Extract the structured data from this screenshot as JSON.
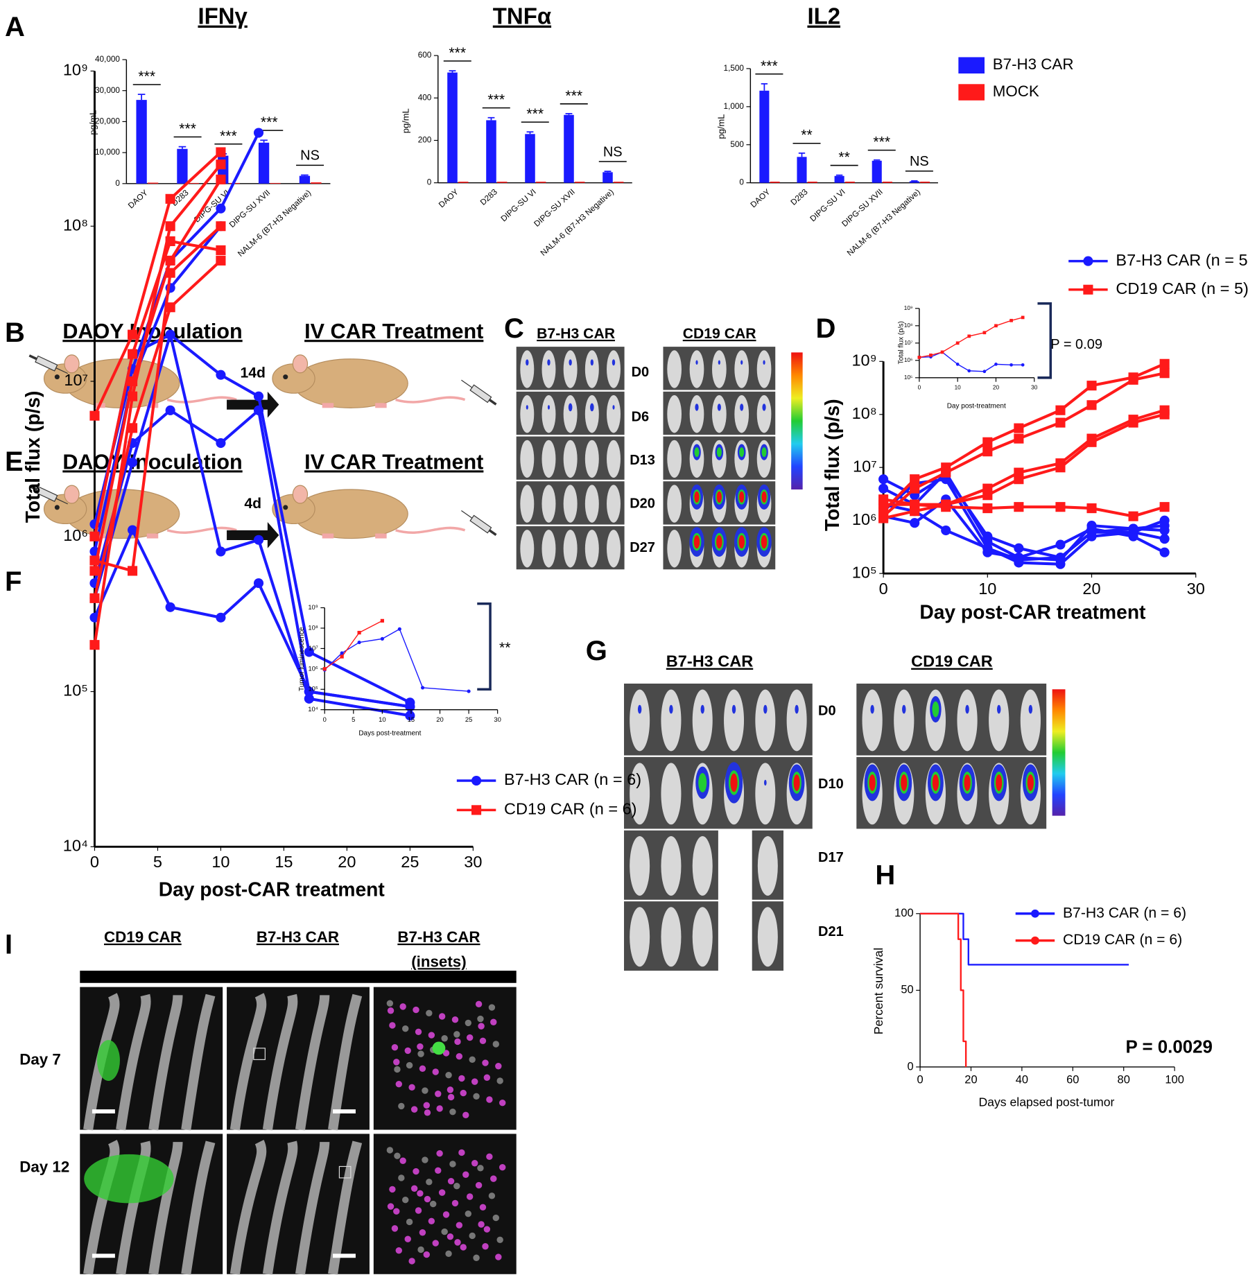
{
  "chart_data": [
    {
      "type": "bar",
      "title": "IFNγ",
      "ylabel": "pg/mL",
      "categories": [
        "DAOY",
        "D283",
        "DIPG-SU VI",
        "DIPG-SU XVII",
        "NALM-6 (B7-H3 Negative)"
      ],
      "series": [
        {
          "color": "#1a1aff",
          "values": [
            27000,
            11200,
            9000,
            13200,
            2500
          ],
          "errors": [
            1800,
            700,
            600,
            800,
            250
          ]
        },
        {
          "color": "#ff1a1a",
          "values": [
            300,
            200,
            200,
            200,
            400
          ]
        }
      ],
      "annotations": [
        "***",
        "***",
        "***",
        "***",
        "NS"
      ],
      "ylim": [
        0,
        40000
      ],
      "yticks": [
        0,
        {
          "value": 10000,
          "label": "10,000"
        },
        {
          "value": 20000,
          "label": "20,000"
        },
        {
          "value": 30000,
          "label": "30,000"
        },
        {
          "value": 40000,
          "label": "40,000"
        }
      ]
    },
    {
      "type": "bar",
      "title": "TNFα",
      "ylabel": "pg/mL",
      "categories": [
        "DAOY",
        "D283",
        "DIPG-SU VI",
        "DIPG-SU XVII",
        "NALM-6 (B7-H3 Negative)"
      ],
      "series": [
        {
          "color": "#1a1aff",
          "values": [
            520,
            295,
            230,
            320,
            50
          ],
          "errors": [
            8,
            12,
            10,
            6,
            4
          ]
        },
        {
          "color": "#ff1a1a",
          "values": [
            5,
            5,
            5,
            5,
            5
          ]
        }
      ],
      "annotations": [
        "***",
        "***",
        "***",
        "***",
        "NS"
      ],
      "ylim": [
        0,
        600
      ],
      "yticks": [
        0,
        200,
        400,
        600
      ]
    },
    {
      "type": "bar",
      "title": "IL2",
      "ylabel": "pg/mL",
      "categories": [
        "DAOY",
        "D283",
        "DIPG-SU VI",
        "DIPG-SU XVII",
        "NALM-6 (B7-H3 Negative)"
      ],
      "series": [
        {
          "name": "B7-H3 CAR",
          "color": "#1a1aff",
          "values": [
            1210,
            340,
            90,
            290,
            20
          ],
          "errors": [
            90,
            50,
            10,
            10,
            5
          ]
        },
        {
          "name": "MOCK",
          "color": "#ff1a1a",
          "values": [
            15,
            15,
            15,
            15,
            15
          ]
        }
      ],
      "annotations": [
        "***",
        "**",
        "**",
        "***",
        "NS"
      ],
      "ylim": [
        0,
        1500
      ],
      "yticks": [
        0,
        500,
        {
          "value": 1000,
          "label": "1,000"
        },
        {
          "value": 1500,
          "label": "1,500"
        }
      ]
    },
    {
      "type": "line",
      "yscale": "log",
      "ylabel": "Total flux (p/s)",
      "xlabel": "Day post-CAR treatment",
      "x": [
        0,
        3,
        6,
        10,
        13,
        17,
        20,
        24,
        27
      ],
      "series": [
        {
          "name": "B7-H3 CAR (n = 5)",
          "color": "#1a1aff",
          "marker": "circle",
          "lines": [
            [
              6000000,
              3000000,
              7000000,
              500000,
              300000,
              200000,
              600000,
              600000,
              1000000
            ],
            [
              4000000,
              2000000,
              8000000,
              400000,
              200000,
              180000,
              800000,
              700000,
              800000
            ],
            [
              1500000,
              5000000,
              6000000,
              300000,
              160000,
              150000,
              500000,
              600000,
              450000
            ],
            [
              1200000,
              900000,
              2500000,
              250000,
              200000,
              350000,
              700000,
              500000,
              250000
            ],
            [
              2000000,
              1500000,
              650000,
              300000,
              180000,
              200000,
              600000,
              700000,
              650000
            ]
          ]
        },
        {
          "name": "CD19 CAR (n = 5)",
          "color": "#ff1a1a",
          "marker": "square",
          "lines": [
            [
              1500000,
              6000000,
              10000000,
              30000000,
              55000000,
              120000000,
              350000000,
              500000000,
              900000000
            ],
            [
              1200000,
              4000000,
              8000000,
              20000000,
              35000000,
              70000000,
              150000000,
              450000000,
              600000000
            ],
            [
              2000000,
              2000000,
              2000000,
              4000000,
              8000000,
              12000000,
              35000000,
              80000000,
              120000000
            ],
            [
              1100000,
              1500000,
              2000000,
              3000000,
              6000000,
              10000000,
              30000000,
              70000000,
              100000000
            ],
            [
              2500000,
              2000000,
              1800000,
              1700000,
              1800000,
              1800000,
              1700000,
              1200000,
              1800000
            ]
          ]
        }
      ],
      "ylim": [
        100000,
        1000000000
      ],
      "yticks": [
        {
          "value": 100000,
          "label": "10⁵"
        },
        {
          "value": 1000000,
          "label": "10⁶"
        },
        {
          "value": 10000000,
          "label": "10⁷"
        },
        {
          "value": 100000000,
          "label": "10⁸"
        },
        {
          "value": 1000000000,
          "label": "10⁹"
        }
      ],
      "xlim": [
        0,
        30
      ],
      "xticks": [
        0,
        10,
        20,
        30
      ]
    },
    {
      "type": "line",
      "yscale": "log",
      "ylabel": "Total flux (p/s)",
      "xlabel": "Day post-treatment",
      "annotation": "P = 0.09",
      "x": [
        0,
        3,
        6,
        10,
        13,
        17,
        20,
        24,
        27
      ],
      "series": [
        {
          "color": "#1a1aff",
          "marker": "circle",
          "values": [
            1500000,
            1600000,
            3000000,
            600000,
            250000,
            230000,
            600000,
            550000,
            550000
          ]
        },
        {
          "color": "#ff1a1a",
          "marker": "square",
          "values": [
            1500000,
            2000000,
            3000000,
            10000000,
            25000000,
            40000000,
            100000000,
            200000000,
            300000000
          ]
        }
      ],
      "ylim": [
        100000,
        1000000000
      ],
      "yticks": [
        {
          "value": 100000,
          "label": "10⁵"
        },
        {
          "value": 1000000,
          "label": "10⁶"
        },
        {
          "value": 10000000,
          "label": "10⁷"
        },
        {
          "value": 100000000,
          "label": "10⁸"
        },
        {
          "value": 1000000000,
          "label": "10⁹"
        }
      ],
      "xlim": [
        0,
        30
      ],
      "xticks": [
        0,
        10,
        20,
        30
      ]
    },
    {
      "type": "line",
      "yscale": "log",
      "ylabel": "Total flux (p/s)",
      "xlabel": "Day post-CAR treatment",
      "x": [
        0,
        3,
        6,
        10,
        13,
        17,
        25
      ],
      "series": [
        {
          "name": "B7-H3 CAR (n = 6)",
          "color": "#1a1aff",
          "marker": "circle",
          "lines": [
            [
              1200000,
              12000000,
              60000000,
              130000000,
              400000000,
              null,
              null
            ],
            [
              800000,
              10000000,
              40000000,
              100000000,
              null,
              null,
              null
            ],
            [
              1000000,
              15000000,
              20000000,
              11000000,
              8000000,
              180000,
              85000
            ],
            [
              500000,
              4000000,
              6500000,
              4000000,
              6500000,
              100000,
              80000
            ],
            [
              400000,
              3000000,
              20000000,
              800000,
              950000,
              90000,
              70000
            ],
            [
              300000,
              1100000,
              350000,
              300000,
              500000,
              100000,
              80000
            ]
          ]
        },
        {
          "name": "CD19 CAR (n = 6)",
          "color": "#ff1a1a",
          "marker": "square",
          "lines": [
            [
              6000000,
              20000000,
              150000000,
              300000000,
              null,
              null,
              null
            ],
            [
              200000,
              8000000,
              100000000,
              250000000,
              null,
              null,
              null
            ],
            [
              700000,
              600000,
              50000000,
              100000000,
              null,
              null,
              null
            ],
            [
              1000000,
              15000000,
              80000000,
              70000000,
              null,
              null,
              null
            ],
            [
              600000,
              10000000,
              60000000,
              200000000,
              null,
              null,
              null
            ],
            [
              400000,
              5000000,
              30000000,
              60000000,
              null,
              null,
              null
            ]
          ]
        }
      ],
      "ylim": [
        10000,
        1000000000
      ],
      "yticks": [
        {
          "value": 10000,
          "label": "10⁴"
        },
        {
          "value": 100000,
          "label": "10⁵"
        },
        {
          "value": 1000000,
          "label": "10⁶"
        },
        {
          "value": 10000000,
          "label": "10⁷"
        },
        {
          "value": 100000000,
          "label": "10⁸"
        },
        {
          "value": 1000000000,
          "label": "10⁹"
        }
      ],
      "xlim": [
        0,
        30
      ],
      "xticks": [
        0,
        5,
        10,
        15,
        20,
        25,
        30
      ]
    },
    {
      "type": "line",
      "yscale": "log",
      "ylabel": "Tumor luminescence",
      "xlabel": "Days post-treatment",
      "annotation": "**",
      "x": [
        0,
        3,
        6,
        10,
        13,
        17,
        25
      ],
      "series": [
        {
          "color": "#1a1aff",
          "marker": "circle",
          "values": [
            900000,
            6000000,
            20000000,
            30000000,
            90000000,
            120000,
            80000
          ]
        },
        {
          "color": "#ff1a1a",
          "marker": "square",
          "values": [
            1000000,
            4000000,
            60000000,
            230000000,
            null,
            null,
            null
          ]
        }
      ],
      "ylim": [
        10000,
        1000000000
      ],
      "yticks": [
        {
          "value": 10000,
          "label": "10⁴"
        },
        {
          "value": 100000,
          "label": "10⁵"
        },
        {
          "value": 1000000,
          "label": "10⁶"
        },
        {
          "value": 10000000,
          "label": "10⁷"
        },
        {
          "value": 100000000,
          "label": "10⁸"
        },
        {
          "value": 1000000000,
          "label": "10⁹"
        }
      ],
      "xlim": [
        0,
        30
      ],
      "xticks": [
        0,
        5,
        10,
        15,
        20,
        25,
        30
      ]
    },
    {
      "type": "line",
      "ylabel": "Percent survival",
      "xlabel": "Days elapsed post-tumor",
      "annotation": "P = 0.0029",
      "series": [
        {
          "name": "B7-H3 CAR (n = 6)",
          "color": "#1a1aff",
          "x": [
            0,
            17,
            17,
            19,
            19,
            82
          ],
          "values": [
            100,
            100,
            83.3,
            83.3,
            66.7,
            66.7
          ]
        },
        {
          "name": "CD19 CAR (n = 6)",
          "color": "#ff1a1a",
          "x": [
            0,
            15,
            15,
            16,
            16,
            17,
            17,
            18,
            18
          ],
          "values": [
            100,
            100,
            83.3,
            83.3,
            50,
            50,
            16.7,
            16.7,
            0
          ]
        }
      ],
      "ylim": [
        0,
        100
      ],
      "yticks": [
        0,
        50,
        100
      ],
      "xlim": [
        0,
        100
      ],
      "xticks": [
        0,
        20,
        40,
        60,
        80,
        100
      ]
    }
  ],
  "figure": {
    "panel_labels": [
      "A",
      "B",
      "C",
      "D",
      "E",
      "F",
      "G",
      "H",
      "I"
    ],
    "schematics": [
      {
        "left": "DAOY Inoculation",
        "right": "IV CAR Treatment",
        "interval": "14d"
      },
      {
        "left": "DAOY Inoculation",
        "right": "IV CAR Treatment",
        "interval": "4d"
      }
    ],
    "imaging_c": {
      "groups": [
        "B7-H3 CAR",
        "CD19 CAR"
      ],
      "days": [
        "D0",
        "D6",
        "D13",
        "D20",
        "D27"
      ]
    },
    "imaging_g": {
      "groups": [
        "B7-H3 CAR",
        "CD19 CAR"
      ],
      "days": [
        "D0",
        "D10",
        "D17",
        "D21"
      ]
    },
    "histology_i": {
      "columns": [
        "CD19 CAR",
        "B7-H3 CAR",
        "B7-H3 CAR"
      ],
      "column_note": "(insets)",
      "rows": [
        "Day 7",
        "Day 12"
      ]
    }
  }
}
